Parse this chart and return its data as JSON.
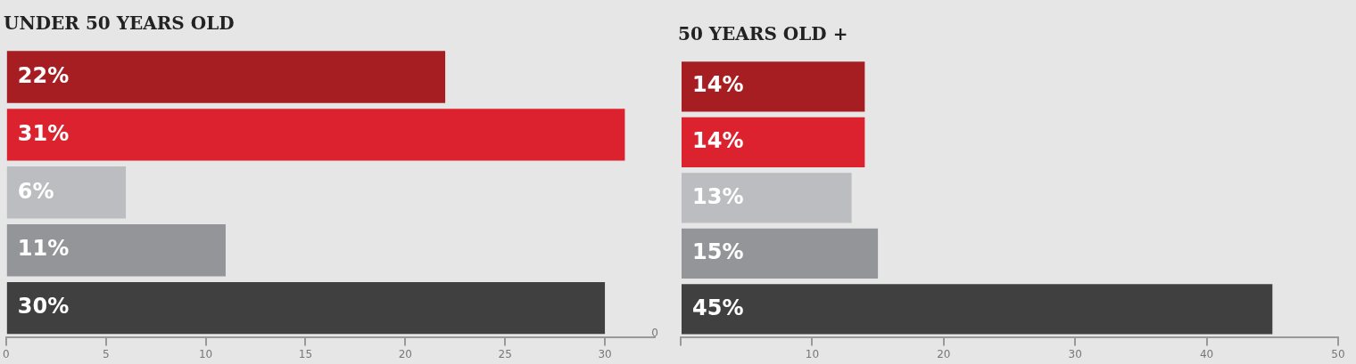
{
  "chart_data": [
    {
      "type": "bar",
      "orientation": "horizontal",
      "title": "UNDER 50 YEARS OLD",
      "categories": [
        null,
        null,
        null,
        null,
        null
      ],
      "values": [
        22,
        31,
        6,
        11,
        30
      ],
      "colors": [
        "#a61e22",
        "#dc222f",
        "#bcbdc0",
        "#939598",
        "#404040"
      ],
      "value_labels": [
        "22%",
        "31%",
        "6%",
        "11%",
        "30%"
      ],
      "xlim": [
        0,
        32.5
      ],
      "xticks": [
        0,
        5,
        10,
        15,
        20,
        25,
        30
      ],
      "grid": false,
      "annotations": [
        "0"
      ]
    },
    {
      "type": "bar",
      "orientation": "horizontal",
      "title": "50 YEARS OLD +",
      "categories": [
        null,
        null,
        null,
        null,
        null
      ],
      "values": [
        14,
        14,
        13,
        15,
        45
      ],
      "colors": [
        "#a61e22",
        "#dc222f",
        "#bcbdc0",
        "#939598",
        "#404040"
      ],
      "value_labels": [
        "14%",
        "14%",
        "13%",
        "15%",
        "45%"
      ],
      "xlim": [
        0,
        50
      ],
      "xticks": [
        {
          "value": 0,
          "label": null
        },
        10,
        20,
        30,
        40,
        50
      ],
      "grid": false
    }
  ]
}
